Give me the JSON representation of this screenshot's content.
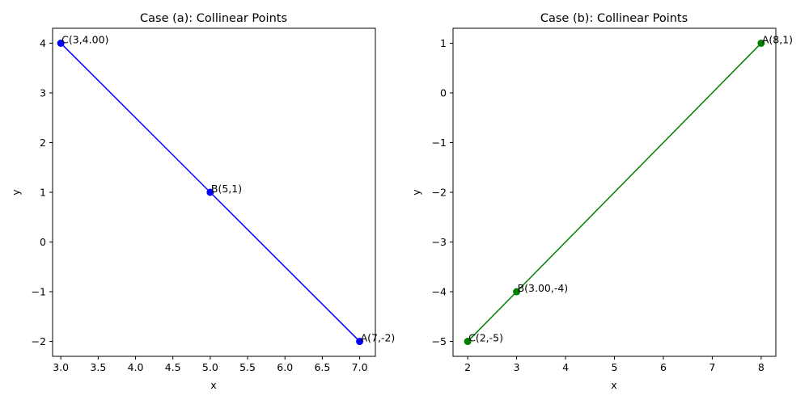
{
  "chart_data": [
    {
      "type": "line",
      "title": "Case (a): Collinear Points",
      "xlabel": "x",
      "ylabel": "y",
      "xlim": [
        2.89,
        7.21
      ],
      "ylim": [
        -2.3,
        4.3
      ],
      "x_ticks": [
        3.0,
        3.5,
        4.0,
        4.5,
        5.0,
        5.5,
        6.0,
        6.5,
        7.0
      ],
      "x_tick_labels": [
        "3.0",
        "3.5",
        "4.0",
        "4.5",
        "5.0",
        "5.5",
        "6.0",
        "6.5",
        "7.0"
      ],
      "y_ticks": [
        -2,
        -1,
        0,
        1,
        2,
        3,
        4
      ],
      "y_tick_labels": [
        "−2",
        "−1",
        "0",
        "1",
        "2",
        "3",
        "4"
      ],
      "color": "#0000ff",
      "grid": false,
      "points": [
        {
          "x": 7,
          "y": -2,
          "label": "A(7,-2)"
        },
        {
          "x": 5,
          "y": 1,
          "label": "B(5,1)"
        },
        {
          "x": 3,
          "y": 4,
          "label": "C(3,4.00)"
        }
      ]
    },
    {
      "type": "line",
      "title": "Case (b): Collinear Points",
      "xlabel": "x",
      "ylabel": "y",
      "xlim": [
        1.7,
        8.3
      ],
      "ylim": [
        -5.3,
        1.3
      ],
      "x_ticks": [
        2,
        3,
        4,
        5,
        6,
        7,
        8
      ],
      "x_tick_labels": [
        "2",
        "3",
        "4",
        "5",
        "6",
        "7",
        "8"
      ],
      "y_ticks": [
        -5,
        -4,
        -3,
        -2,
        -1,
        0,
        1
      ],
      "y_tick_labels": [
        "−5",
        "−4",
        "−3",
        "−2",
        "−1",
        "0",
        "1"
      ],
      "color": "#008000",
      "grid": false,
      "points": [
        {
          "x": 8,
          "y": 1,
          "label": "A(8,1)"
        },
        {
          "x": 3,
          "y": -4,
          "label": "B(3.00,-4)"
        },
        {
          "x": 2,
          "y": -5,
          "label": "C(2,-5)"
        }
      ]
    }
  ]
}
